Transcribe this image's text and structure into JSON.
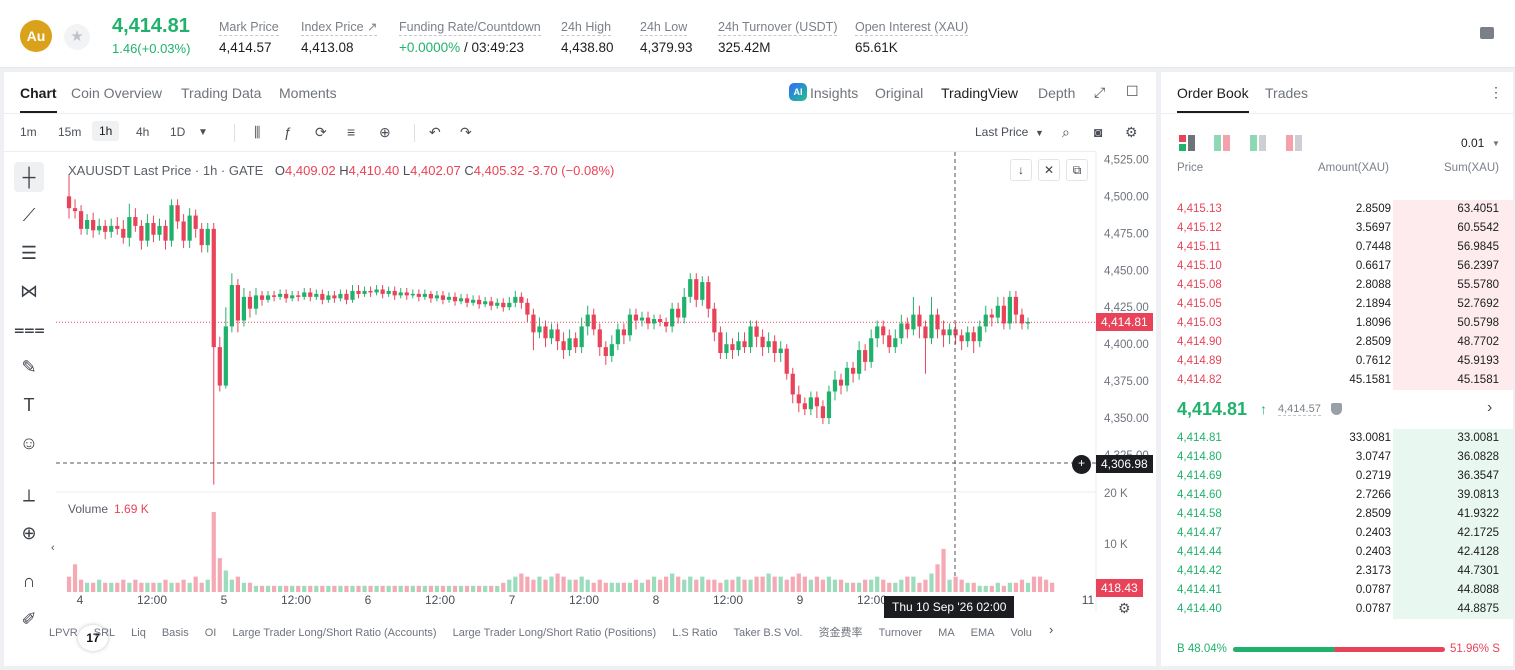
{
  "header": {
    "coin_badge": "Au",
    "last_price": "4,414.81",
    "change": "1.46(+0.03%)",
    "stats": [
      {
        "label": "Mark Price",
        "value": "4,414.57"
      },
      {
        "label": "Index Price ↗",
        "value": "4,413.08"
      },
      {
        "label": "Funding Rate/Countdown",
        "value_green": "+0.0000%",
        "value": " / 03:49:23"
      },
      {
        "label": "24h High",
        "value": "4,438.80"
      },
      {
        "label": "24h Low",
        "value": "4,379.93"
      },
      {
        "label": "24h Turnover (USDT)",
        "value": "325.42M"
      },
      {
        "label": "Open Interest (XAU)",
        "value": "65.61K"
      }
    ]
  },
  "chart_tabs": [
    "Chart",
    "Coin Overview",
    "Trading Data",
    "Moments"
  ],
  "view_tabs": {
    "insights": "Insights",
    "original": "Original",
    "tradingview": "TradingView",
    "depth": "Depth",
    "ai": "AI"
  },
  "timeframes": [
    "1m",
    "15m",
    "1h",
    "4h",
    "1D"
  ],
  "toolbar": {
    "price_type": "Last Price"
  },
  "legend": {
    "title": "XAUUSDT Last Price · 1h · GATE",
    "o_label": "O",
    "o": "4,409.02",
    "h_label": "H",
    "h": "4,410.40",
    "l_label": "L",
    "l": "4,402.07",
    "c_label": "C",
    "c": "4,405.32",
    "chg": "-3.70 (−0.08%)"
  },
  "volume_legend": {
    "label": "Volume",
    "value": "1.69 K"
  },
  "price_axis": [
    "4,525.00",
    "4,500.00",
    "4,475.00",
    "4,450.00",
    "4,425.00",
    "4,400.00",
    "4,375.00",
    "4,350.00",
    "4,325.00"
  ],
  "volume_axis": [
    "20 K",
    "10 K"
  ],
  "time_axis": [
    "4",
    "12:00",
    "5",
    "12:00",
    "6",
    "12:00",
    "7",
    "12:00",
    "8",
    "12:00",
    "9",
    "12:00",
    "11"
  ],
  "tags": {
    "last": "4,414.81",
    "cursor": "4,306.98",
    "volume": "418.43",
    "crosshair_time": "Thu 10 Sep '26   02:00"
  },
  "tv_logo": "17",
  "indicators": [
    "LPVR",
    "SRL",
    "Liq",
    "Basis",
    "OI",
    "Large Trader Long/Short Ratio (Accounts)",
    "Large Trader Long/Short Ratio (Positions)",
    "L.S Ratio",
    "Taker B.S Vol.",
    "资金费率",
    "Turnover",
    "MA",
    "EMA",
    "Volu"
  ],
  "chart_data": {
    "type": "candlestick",
    "series_name": "XAUUSDT Last Price",
    "ylim": [
      4300,
      4530
    ],
    "candles": [
      [
        4500,
        4492,
        4515,
        4485
      ],
      [
        4492,
        4490,
        4498,
        4485
      ],
      [
        4490,
        4478,
        4494,
        4474
      ],
      [
        4478,
        4484,
        4488,
        4474
      ],
      [
        4484,
        4477,
        4489,
        4472
      ],
      [
        4477,
        4480,
        4485,
        4474
      ],
      [
        4480,
        4476,
        4484,
        4471
      ],
      [
        4476,
        4480,
        4485,
        4472
      ],
      [
        4480,
        4478,
        4486,
        4474
      ],
      [
        4478,
        4472,
        4484,
        4468
      ],
      [
        4472,
        4486,
        4495,
        4466
      ],
      [
        4486,
        4480,
        4492,
        4476
      ],
      [
        4480,
        4470,
        4484,
        4464
      ],
      [
        4470,
        4482,
        4488,
        4466
      ],
      [
        4482,
        4474,
        4487,
        4469
      ],
      [
        4474,
        4480,
        4485,
        4470
      ],
      [
        4480,
        4470,
        4484,
        4464
      ],
      [
        4470,
        4494,
        4498,
        4466
      ],
      [
        4494,
        4483,
        4498,
        4478
      ],
      [
        4483,
        4470,
        4488,
        4465
      ],
      [
        4470,
        4487,
        4492,
        4465
      ],
      [
        4487,
        4478,
        4491,
        4472
      ],
      [
        4478,
        4467,
        4482,
        4462
      ],
      [
        4467,
        4478,
        4482,
        4462
      ],
      [
        4478,
        4398,
        4482,
        4305
      ],
      [
        4398,
        4372,
        4405,
        4368
      ],
      [
        4372,
        4412,
        4425,
        4370
      ],
      [
        4412,
        4440,
        4448,
        4408
      ],
      [
        4440,
        4416,
        4444,
        4408
      ],
      [
        4416,
        4432,
        4438,
        4412
      ],
      [
        4432,
        4424,
        4436,
        4418
      ],
      [
        4424,
        4433,
        4438,
        4420
      ],
      [
        4433,
        4430,
        4436,
        4426
      ],
      [
        4430,
        4433,
        4436,
        4428
      ],
      [
        4433,
        4432,
        4436,
        4429
      ],
      [
        4432,
        4434,
        4437,
        4430
      ],
      [
        4434,
        4431,
        4437,
        4428
      ],
      [
        4431,
        4433,
        4436,
        4429
      ],
      [
        4433,
        4432,
        4436,
        4429
      ],
      [
        4432,
        4435,
        4438,
        4430
      ],
      [
        4435,
        4432,
        4438,
        4429
      ],
      [
        4432,
        4434,
        4437,
        4430
      ],
      [
        4434,
        4430,
        4437,
        4427
      ],
      [
        4430,
        4433,
        4436,
        4428
      ],
      [
        4433,
        4431,
        4436,
        4428
      ],
      [
        4431,
        4434,
        4437,
        4429
      ],
      [
        4434,
        4430,
        4437,
        4427
      ],
      [
        4430,
        4436,
        4440,
        4428
      ],
      [
        4436,
        4434,
        4440,
        4431
      ],
      [
        4434,
        4436,
        4439,
        4432
      ],
      [
        4436,
        4435,
        4439,
        4432
      ],
      [
        4435,
        4437,
        4440,
        4433
      ],
      [
        4437,
        4434,
        4440,
        4431
      ],
      [
        4434,
        4436,
        4439,
        4432
      ],
      [
        4436,
        4433,
        4439,
        4430
      ],
      [
        4433,
        4435,
        4438,
        4431
      ],
      [
        4435,
        4433,
        4438,
        4430
      ],
      [
        4433,
        4434,
        4437,
        4431
      ],
      [
        4434,
        4432,
        4437,
        4429
      ],
      [
        4432,
        4434,
        4437,
        4430
      ],
      [
        4434,
        4431,
        4436,
        4428
      ],
      [
        4431,
        4433,
        4436,
        4429
      ],
      [
        4433,
        4430,
        4436,
        4427
      ],
      [
        4430,
        4432,
        4435,
        4428
      ],
      [
        4432,
        4429,
        4435,
        4426
      ],
      [
        4429,
        4431,
        4434,
        4427
      ],
      [
        4431,
        4428,
        4434,
        4425
      ],
      [
        4428,
        4430,
        4433,
        4426
      ],
      [
        4430,
        4427,
        4433,
        4424
      ],
      [
        4427,
        4429,
        4432,
        4425
      ],
      [
        4429,
        4426,
        4432,
        4423
      ],
      [
        4426,
        4428,
        4431,
        4424
      ],
      [
        4428,
        4425,
        4431,
        4422
      ],
      [
        4425,
        4428,
        4432,
        4423
      ],
      [
        4428,
        4432,
        4436,
        4425
      ],
      [
        4432,
        4428,
        4435,
        4424
      ],
      [
        4428,
        4420,
        4431,
        4415
      ],
      [
        4420,
        4408,
        4424,
        4396
      ],
      [
        4408,
        4412,
        4418,
        4404
      ],
      [
        4412,
        4404,
        4416,
        4398
      ],
      [
        4404,
        4410,
        4414,
        4400
      ],
      [
        4410,
        4402,
        4414,
        4396
      ],
      [
        4402,
        4396,
        4408,
        4390
      ],
      [
        4396,
        4404,
        4410,
        4392
      ],
      [
        4404,
        4398,
        4408,
        4394
      ],
      [
        4398,
        4412,
        4418,
        4394
      ],
      [
        4412,
        4420,
        4426,
        4406
      ],
      [
        4420,
        4410,
        4424,
        4406
      ],
      [
        4410,
        4398,
        4414,
        4392
      ],
      [
        4398,
        4392,
        4402,
        4386
      ],
      [
        4392,
        4400,
        4406,
        4388
      ],
      [
        4400,
        4410,
        4414,
        4396
      ],
      [
        4410,
        4406,
        4414,
        4400
      ],
      [
        4406,
        4420,
        4424,
        4402
      ],
      [
        4420,
        4416,
        4424,
        4410
      ],
      [
        4416,
        4418,
        4422,
        4412
      ],
      [
        4418,
        4414,
        4422,
        4410
      ],
      [
        4414,
        4417,
        4420,
        4410
      ],
      [
        4417,
        4415,
        4420,
        4412
      ],
      [
        4415,
        4412,
        4418,
        4408
      ],
      [
        4412,
        4424,
        4428,
        4408
      ],
      [
        4424,
        4418,
        4428,
        4414
      ],
      [
        4418,
        4432,
        4438,
        4414
      ],
      [
        4432,
        4444,
        4448,
        4428
      ],
      [
        4444,
        4430,
        4448,
        4425
      ],
      [
        4430,
        4442,
        4446,
        4426
      ],
      [
        4442,
        4424,
        4446,
        4418
      ],
      [
        4424,
        4408,
        4428,
        4402
      ],
      [
        4408,
        4394,
        4412,
        4390
      ],
      [
        4394,
        4400,
        4408,
        4390
      ],
      [
        4400,
        4396,
        4404,
        4390
      ],
      [
        4396,
        4402,
        4408,
        4392
      ],
      [
        4402,
        4398,
        4408,
        4394
      ],
      [
        4398,
        4412,
        4416,
        4394
      ],
      [
        4412,
        4405,
        4416,
        4398
      ],
      [
        4405,
        4398,
        4410,
        4392
      ],
      [
        4398,
        4402,
        4408,
        4394
      ],
      [
        4402,
        4394,
        4406,
        4388
      ],
      [
        4394,
        4397,
        4402,
        4388
      ],
      [
        4397,
        4380,
        4400,
        4376
      ],
      [
        4380,
        4366,
        4384,
        4360
      ],
      [
        4366,
        4360,
        4372,
        4354
      ],
      [
        4360,
        4356,
        4364,
        4352
      ],
      [
        4356,
        4364,
        4368,
        4352
      ],
      [
        4364,
        4358,
        4368,
        4350
      ],
      [
        4358,
        4350,
        4362,
        4346
      ],
      [
        4350,
        4368,
        4372,
        4346
      ],
      [
        4368,
        4376,
        4382,
        4362
      ],
      [
        4376,
        4372,
        4380,
        4366
      ],
      [
        4372,
        4384,
        4388,
        4368
      ],
      [
        4384,
        4380,
        4388,
        4374
      ],
      [
        4380,
        4396,
        4402,
        4376
      ],
      [
        4396,
        4388,
        4400,
        4382
      ],
      [
        4388,
        4404,
        4410,
        4384
      ],
      [
        4404,
        4412,
        4416,
        4398
      ],
      [
        4412,
        4406,
        4416,
        4400
      ],
      [
        4406,
        4398,
        4410,
        4394
      ],
      [
        4398,
        4404,
        4410,
        4394
      ],
      [
        4404,
        4414,
        4420,
        4400
      ],
      [
        4414,
        4410,
        4418,
        4404
      ],
      [
        4410,
        4420,
        4432,
        4406
      ],
      [
        4420,
        4412,
        4426,
        4404
      ],
      [
        4412,
        4404,
        4416,
        4380
      ],
      [
        4404,
        4420,
        4432,
        4400
      ],
      [
        4420,
        4410,
        4424,
        4404
      ],
      [
        4410,
        4406,
        4416,
        4398
      ],
      [
        4406,
        4410,
        4414,
        4400
      ],
      [
        4410,
        4406,
        4414,
        4400
      ],
      [
        4406,
        4402,
        4410,
        4396
      ],
      [
        4402,
        4408,
        4412,
        4398
      ],
      [
        4408,
        4402,
        4412,
        4394
      ],
      [
        4402,
        4412,
        4416,
        4398
      ],
      [
        4412,
        4420,
        4426,
        4408
      ],
      [
        4420,
        4418,
        4424,
        4412
      ],
      [
        4418,
        4426,
        4432,
        4414
      ],
      [
        4426,
        4414,
        4432,
        4410
      ],
      [
        4414,
        4432,
        4436,
        4410
      ],
      [
        4432,
        4420,
        4436,
        4414
      ],
      [
        4420,
        4414,
        4424,
        4410
      ],
      [
        4414,
        4415,
        4418,
        4410
      ]
    ],
    "volumes": [
      5,
      9,
      4,
      3,
      3,
      4,
      3,
      3,
      3,
      4,
      3,
      4,
      3,
      3,
      3,
      3,
      4,
      3,
      3,
      4,
      3,
      5,
      3,
      4,
      26,
      11,
      7,
      4,
      5,
      3,
      3,
      2,
      2,
      2,
      2,
      2,
      2,
      2,
      2,
      2,
      2,
      2,
      2,
      2,
      2,
      2,
      2,
      2,
      2,
      2,
      2,
      2,
      2,
      2,
      2,
      2,
      2,
      2,
      2,
      2,
      2,
      2,
      2,
      2,
      2,
      2,
      2,
      2,
      2,
      2,
      2,
      2,
      3,
      4,
      5,
      6,
      5,
      4,
      5,
      4,
      5,
      6,
      5,
      4,
      4,
      5,
      4,
      3,
      4,
      3,
      3,
      3,
      3,
      3,
      4,
      3,
      4,
      5,
      4,
      5,
      6,
      5,
      4,
      5,
      4,
      5,
      4,
      4,
      3,
      4,
      4,
      5,
      4,
      4,
      5,
      5,
      6,
      5,
      5,
      4,
      5,
      6,
      5,
      4,
      5,
      4,
      5,
      4,
      4,
      3,
      3,
      3,
      4,
      4,
      5,
      4,
      3,
      3,
      4,
      5,
      5,
      3,
      4,
      6,
      9,
      14,
      4,
      5,
      4,
      3,
      3,
      2,
      2,
      2,
      3,
      2,
      3,
      3,
      4,
      3,
      5,
      5,
      4,
      3
    ]
  },
  "orderbook": {
    "tabs": [
      "Order Book",
      "Trades"
    ],
    "precision": "0.01",
    "headers": {
      "price": "Price",
      "amount": "Amount(XAU)",
      "sum": "Sum(XAU)"
    },
    "asks": [
      {
        "price": "4,415.13",
        "amount": "2.8509",
        "sum": "63.4051",
        "depth": 0.34
      },
      {
        "price": "4,415.12",
        "amount": "3.5697",
        "sum": "60.5542",
        "depth": 0.34
      },
      {
        "price": "4,415.11",
        "amount": "0.7448",
        "sum": "56.9845",
        "depth": 0.34
      },
      {
        "price": "4,415.10",
        "amount": "0.6617",
        "sum": "56.2397",
        "depth": 0.34
      },
      {
        "price": "4,415.08",
        "amount": "2.8088",
        "sum": "55.5780",
        "depth": 0.34
      },
      {
        "price": "4,415.05",
        "amount": "2.1894",
        "sum": "52.7692",
        "depth": 0.34
      },
      {
        "price": "4,415.03",
        "amount": "1.8096",
        "sum": "50.5798",
        "depth": 0.34
      },
      {
        "price": "4,414.90",
        "amount": "2.8509",
        "sum": "48.7702",
        "depth": 0.34
      },
      {
        "price": "4,414.89",
        "amount": "0.7612",
        "sum": "45.9193",
        "depth": 0.34
      },
      {
        "price": "4,414.82",
        "amount": "45.1581",
        "sum": "45.1581",
        "depth": 0.34
      }
    ],
    "mid": {
      "price": "4,414.81",
      "arrow": "↑",
      "mark": "4,414.57"
    },
    "bids": [
      {
        "price": "4,414.81",
        "amount": "33.0081",
        "sum": "33.0081",
        "depth": 0.34
      },
      {
        "price": "4,414.80",
        "amount": "3.0747",
        "sum": "36.0828",
        "depth": 0.34
      },
      {
        "price": "4,414.69",
        "amount": "0.2719",
        "sum": "36.3547",
        "depth": 0.34
      },
      {
        "price": "4,414.60",
        "amount": "2.7266",
        "sum": "39.0813",
        "depth": 0.34
      },
      {
        "price": "4,414.58",
        "amount": "2.8509",
        "sum": "41.9322",
        "depth": 0.34
      },
      {
        "price": "4,414.47",
        "amount": "0.2403",
        "sum": "42.1725",
        "depth": 0.34
      },
      {
        "price": "4,414.44",
        "amount": "0.2403",
        "sum": "42.4128",
        "depth": 0.34
      },
      {
        "price": "4,414.42",
        "amount": "2.3173",
        "sum": "44.7301",
        "depth": 0.34
      },
      {
        "price": "4,414.41",
        "amount": "0.0787",
        "sum": "44.8088",
        "depth": 0.34
      },
      {
        "price": "4,414.40",
        "amount": "0.0787",
        "sum": "44.8875",
        "depth": 0.34
      }
    ],
    "ratio": {
      "buy_label": "B",
      "buy": "48.04%",
      "sell": "51.96%",
      "sell_label": "S",
      "buy_fraction": 0.4804
    }
  },
  "colors": {
    "up": "#20b26c",
    "down": "#e94359"
  }
}
